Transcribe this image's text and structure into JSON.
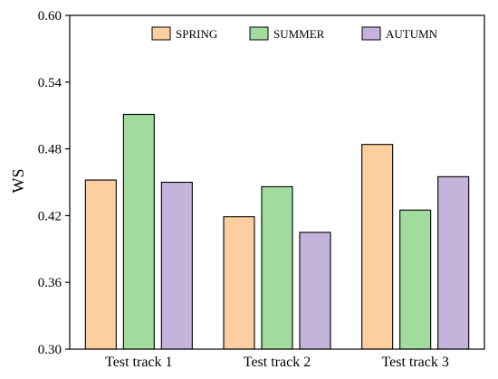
{
  "chart_data": {
    "type": "bar",
    "title": "",
    "xlabel": "",
    "ylabel": "WS",
    "ylim": [
      0.3,
      0.6
    ],
    "yticks": [
      "0.30",
      "0.36",
      "0.42",
      "0.48",
      "0.54",
      "0.60"
    ],
    "grid": false,
    "legend_position": "top-right",
    "categories": [
      "Test track 1",
      "Test track 2",
      "Test track 3"
    ],
    "series": [
      {
        "name": "SPRING",
        "color": "#FDCE9F",
        "values": [
          0.452,
          0.419,
          0.484
        ]
      },
      {
        "name": "SUMMER",
        "color": "#A1DB9E",
        "values": [
          0.511,
          0.446,
          0.425
        ]
      },
      {
        "name": "AUTUMN",
        "color": "#C4B3DB",
        "values": [
          0.45,
          0.405,
          0.455
        ]
      }
    ]
  }
}
